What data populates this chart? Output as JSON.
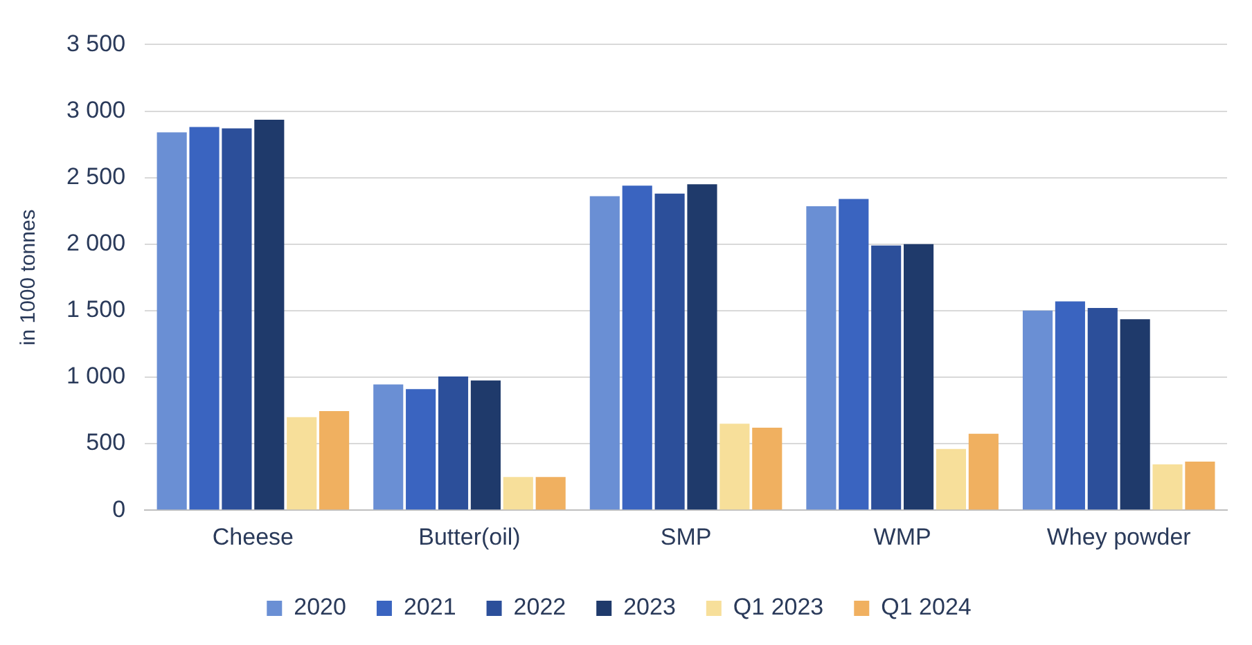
{
  "chart_data": {
    "type": "bar",
    "ylabel": "in 1000 tonnes",
    "categories": [
      "Cheese",
      "Butter(oil)",
      "SMP",
      "WMP",
      "Whey powder"
    ],
    "series": [
      {
        "name": "2020",
        "color": "#6a8fd4",
        "values": [
          2840,
          945,
          2360,
          2285,
          1500
        ]
      },
      {
        "name": "2021",
        "color": "#3a64c0",
        "values": [
          2880,
          910,
          2440,
          2340,
          1570
        ]
      },
      {
        "name": "2022",
        "color": "#2c4f9a",
        "values": [
          2870,
          1005,
          2380,
          1990,
          1520
        ]
      },
      {
        "name": "2023",
        "color": "#1f3a6b",
        "values": [
          2935,
          975,
          2450,
          2000,
          1435
        ]
      },
      {
        "name": "Q1 2023",
        "color": "#f7df9a",
        "values": [
          700,
          250,
          650,
          460,
          345
        ]
      },
      {
        "name": "Q1 2024",
        "color": "#f0b060",
        "values": [
          745,
          250,
          620,
          575,
          365
        ]
      }
    ],
    "ylim": [
      0,
      3500
    ],
    "yticks": [
      0,
      500,
      {
        "value": 1000,
        "label": "1 000"
      },
      {
        "value": 1500,
        "label": "1 500"
      },
      {
        "value": 2000,
        "label": "2 000"
      },
      {
        "value": 2500,
        "label": "2 500"
      },
      {
        "value": 3000,
        "label": "3 000"
      },
      {
        "value": 3500,
        "label": "3 500"
      }
    ],
    "grid": "y",
    "legend": "bottom"
  }
}
